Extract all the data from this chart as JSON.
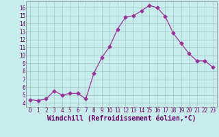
{
  "x": [
    0,
    1,
    2,
    3,
    4,
    5,
    6,
    7,
    8,
    9,
    10,
    11,
    12,
    13,
    14,
    15,
    16,
    17,
    18,
    19,
    20,
    21,
    22,
    23
  ],
  "y": [
    4.4,
    4.3,
    4.5,
    5.5,
    5.0,
    5.2,
    5.2,
    4.5,
    7.7,
    9.7,
    11.1,
    13.3,
    14.8,
    15.0,
    15.6,
    16.3,
    16.0,
    14.9,
    12.8,
    11.5,
    10.2,
    9.3,
    9.3,
    8.5
  ],
  "line_color": "#993399",
  "marker": "D",
  "marker_size": 2.5,
  "bg_color": "#c8ecec",
  "grid_color": "#aacccc",
  "xlabel": "Windchill (Refroidissement éolien,°C)",
  "xlim": [
    -0.5,
    23.5
  ],
  "ylim": [
    3.5,
    16.8
  ],
  "yticks": [
    4,
    5,
    6,
    7,
    8,
    9,
    10,
    11,
    12,
    13,
    14,
    15,
    16
  ],
  "xticks": [
    0,
    1,
    2,
    3,
    4,
    5,
    6,
    7,
    8,
    9,
    10,
    11,
    12,
    13,
    14,
    15,
    16,
    17,
    18,
    19,
    20,
    21,
    22,
    23
  ],
  "tick_fontsize": 5.5,
  "label_fontsize": 7.0
}
